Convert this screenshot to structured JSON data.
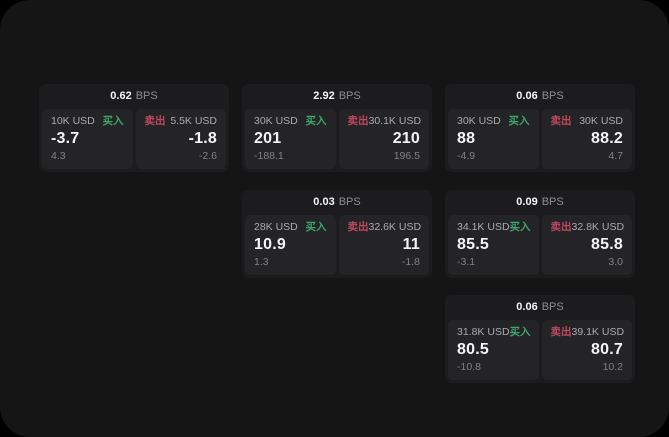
{
  "colors": {
    "bg": "#000000",
    "screen_bg": "#151515",
    "card_bg": "#1c1c1e",
    "panel_bg": "#242427",
    "buy_green": "#3da56c",
    "sell_red": "#bf4861",
    "value_text": "#f4f5f6",
    "label_text": "#a9abad",
    "muted_text": "#7f8183",
    "bps_unit_text": "#8c8e90"
  },
  "labels": {
    "bps_suffix": "BPS",
    "buy": "买入",
    "sell": "卖出"
  },
  "cards": [
    {
      "row": 1,
      "col": 1,
      "bps": "0.62",
      "buy": {
        "amount": "10K USD",
        "value": "-3.7",
        "sub": "4.3"
      },
      "sell": {
        "amount": "5.5K USD",
        "value": "-1.8",
        "sub": "-2.6"
      }
    },
    {
      "row": 1,
      "col": 2,
      "bps": "2.92",
      "buy": {
        "amount": "30K USD",
        "value": "201",
        "sub": "-188.1"
      },
      "sell": {
        "amount": "30.1K USD",
        "value": "210",
        "sub": "196.5"
      }
    },
    {
      "row": 1,
      "col": 3,
      "bps": "0.06",
      "buy": {
        "amount": "30K USD",
        "value": "88",
        "sub": "-4.9"
      },
      "sell": {
        "amount": "30K USD",
        "value": "88.2",
        "sub": "4.7"
      }
    },
    {
      "row": 2,
      "col": 2,
      "bps": "0.03",
      "buy": {
        "amount": "28K USD",
        "value": "10.9",
        "sub": "1.3"
      },
      "sell": {
        "amount": "32.6K USD",
        "value": "11",
        "sub": "-1.8"
      }
    },
    {
      "row": 2,
      "col": 3,
      "bps": "0.09",
      "buy": {
        "amount": "34.1K USD",
        "value": "85.5",
        "sub": "-3.1"
      },
      "sell": {
        "amount": "32.8K USD",
        "value": "85.8",
        "sub": "3.0"
      }
    },
    {
      "row": 3,
      "col": 3,
      "bps": "0.06",
      "buy": {
        "amount": "31.8K USD",
        "value": "80.5",
        "sub": "-10.8"
      },
      "sell": {
        "amount": "39.1K USD",
        "value": "80.7",
        "sub": "10.2"
      }
    }
  ]
}
